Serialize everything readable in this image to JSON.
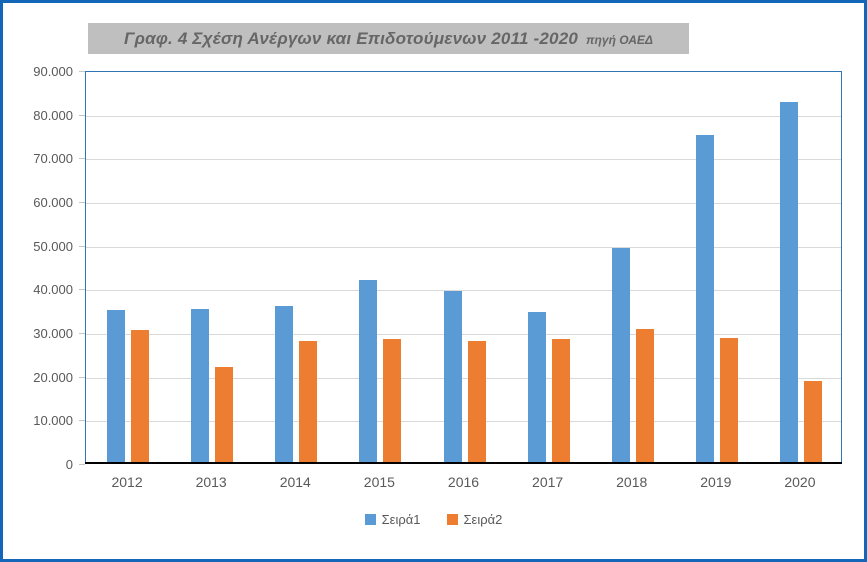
{
  "title": {
    "main": "Γραφ. 4 Σχέση Ανέργων και Επιδοτούμενων 2011 -2020",
    "suffix": "πηγή ΟΑΕΔ"
  },
  "chart_data": {
    "type": "bar",
    "categories": [
      "2012",
      "2013",
      "2014",
      "2015",
      "2016",
      "2017",
      "2018",
      "2019",
      "2020"
    ],
    "series": [
      {
        "name": "Σειρά1",
        "color": "#5B9BD5",
        "values": [
          35000,
          35200,
          36000,
          42000,
          39400,
          34500,
          49200,
          75200,
          82700
        ]
      },
      {
        "name": "Σειρά2",
        "color": "#ED7D31",
        "values": [
          30500,
          22100,
          27900,
          28500,
          27900,
          28500,
          30600,
          28700,
          18700
        ]
      }
    ],
    "ylim": [
      0,
      90000
    ],
    "y_tick_step": 10000,
    "y_tick_labels": [
      "0",
      "10.000",
      "20.000",
      "30.000",
      "40.000",
      "50.000",
      "60.000",
      "70.000",
      "80.000",
      "90.000"
    ],
    "grid": true,
    "legend_position": "bottom",
    "xlabel": "",
    "ylabel": ""
  },
  "colors": {
    "frame_border": "#1467B8",
    "plot_border": "#2E75B6",
    "axis_line": "#000000",
    "gridline": "#D9D9D9",
    "tick_mark": "#C6C6C6",
    "label_text": "#595959",
    "title_background": "#BFBFBF",
    "title_text": "#666666",
    "series1": "#5B9BD5",
    "series2": "#ED7D31"
  }
}
